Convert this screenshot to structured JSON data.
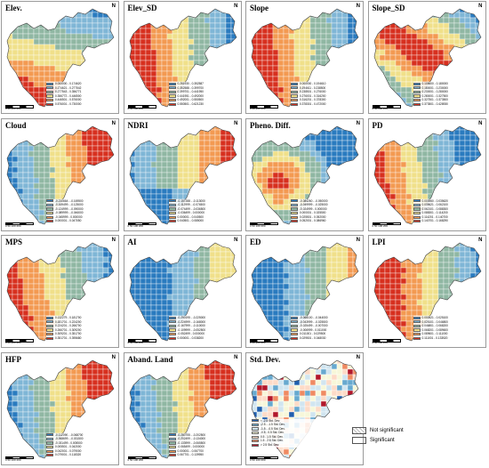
{
  "north_symbol": "N",
  "scale_label": "0  50  100    200",
  "panels": [
    {
      "title": "Elev.",
      "ramp": "red_high_south",
      "legend": [
        "0.000000 - 0.174620",
        "0.174621 - 0.277542",
        "0.277543 - 0.356771",
        "0.356772 - 0.446500",
        "0.446501 - 0.576000",
        "0.576001 - 0.730000"
      ]
    },
    {
      "title": "Elev_SD",
      "ramp": "red_high_west",
      "legend": [
        "0.281930 - 0.352587",
        "0.352588 - 0.399700",
        "0.399701 - 0.441950",
        "0.441951 - 0.492000",
        "0.492001 - 0.550500",
        "0.550501 - 0.621230"
      ]
    },
    {
      "title": "Slope",
      "ramp": "red_high_west",
      "legend": [
        "0.000000 - 0.194610",
        "0.194611 - 0.238500",
        "0.238501 - 0.276000",
        "0.276001 - 0.316200",
        "0.316201 - 0.378300",
        "0.378301 - 0.472000"
      ]
    },
    {
      "title": "Slope_SD",
      "ramp": "red_high_north_band",
      "legend": [
        "0.105600 - 0.180000",
        "0.180001 - 0.230000",
        "0.230001 - 0.280000",
        "0.280001 - 0.327500",
        "0.327501 - 0.373500",
        "0.373501 - 0.428930"
      ]
    },
    {
      "title": "Cloud",
      "ramp": "red_high_east",
      "legend": [
        "-0.210664 - -0.169500",
        "-0.169499 - -0.125000",
        "-0.124999 - -0.090000",
        "-0.089999 - -0.046000",
        "-0.045999 - 0.000000",
        "0.000001 - 0.047050"
      ]
    },
    {
      "title": "NDRI",
      "ramp": "red_high_east_band",
      "legend": [
        "-0.157288 - -0.113000",
        "-0.112999 - -0.074500",
        "-0.074499 - -0.036500",
        "-0.036499 - 0.000000",
        "0.000001 - 0.040500",
        "0.040501 - 0.085000"
      ]
    },
    {
      "title": "Pheno. Diff.",
      "ramp": "red_high_west_core",
      "legend": [
        "-0.084260 - -0.050000",
        "-0.049999 - -0.025000",
        "-0.024999 - 0.000000",
        "0.000001 - 0.025500",
        "0.025501 - 0.052000",
        "0.052001 - 0.086960"
      ]
    },
    {
      "title": "PD",
      "ramp": "red_high_south_west",
      "legend": [
        "0.003960 - 0.035620",
        "0.035621 - 0.062100",
        "0.062101 - 0.088300",
        "0.088301 - 0.114200",
        "0.114201 - 0.140700",
        "0.140701 - 0.168290"
      ]
    },
    {
      "title": "MPS",
      "ramp": "red_high_west_diag",
      "legend": [
        "0.132279 - 0.181700",
        "0.181701 - 0.224200",
        "0.224201 - 0.266700",
        "0.266701 - 0.309200",
        "0.309201 - 0.351700",
        "0.351701 - 0.395680"
      ]
    },
    {
      "title": "AI",
      "ramp": "blue_dominant",
      "legend": [
        "-0.290195 - -0.225000",
        "-0.224999 - -0.168000",
        "-0.167999 - -0.110000",
        "-0.109999 - -0.052500",
        "-0.052499 - 0.000000",
        "0.000001 - 0.038200"
      ]
    },
    {
      "title": "ED",
      "ramp": "red_high_east_small",
      "legend": [
        "-0.068100 - -0.044000",
        "-0.043999 - -0.025500",
        "-0.025499 - -0.007000",
        "-0.006999 - 0.011000",
        "0.011001 - 0.029500",
        "0.029501 - 0.048030"
      ]
    },
    {
      "title": "LPI",
      "ramp": "red_high_west_wide",
      "legend": [
        "0.000521 - 0.025100",
        "0.025101 - 0.046800",
        "0.046801 - 0.068200",
        "0.068201 - 0.089600",
        "0.089601 - 0.111000",
        "0.111001 - 0.133520"
      ]
    },
    {
      "title": "HFP",
      "ramp": "red_high_east",
      "legend": [
        "-0.112090 - -0.068700",
        "-0.068699 - -0.031500",
        "-0.031499 - 0.005500",
        "0.005501 - 0.042000",
        "0.042001 - 0.079000",
        "0.079001 - 0.118320"
      ]
    },
    {
      "title": "Aband. Land",
      "ramp": "red_high_east",
      "legend": [
        "-0.280755 - -0.202500",
        "-0.202499 - -0.134000",
        "-0.133999 - -0.065500",
        "-0.065499 - 0.000000",
        "0.000001 - 0.067700",
        "0.067701 - 0.139950"
      ]
    },
    {
      "title": "Std. Dev.",
      "ramp": "stddev",
      "legend": [
        "< -2.5 Std. Dev.",
        "-2.5 - -1.5 Std. Dev.",
        "-1.5 - -0.5 Std. Dev.",
        "-0.5 - 0.5 Std. Dev.",
        "0.5 - 1.5 Std. Dev.",
        "1.5 - 2.5 Std. Dev.",
        "> 2.5 Std. Dev."
      ]
    }
  ],
  "significance_legend": {
    "not_significant": "Not significant",
    "significant": "Significant"
  },
  "colors": {
    "six_class": [
      "#2a7bbf",
      "#7fb6d6",
      "#90b7a3",
      "#f0e08a",
      "#f39a52",
      "#d7301f"
    ],
    "stddev": [
      "#1f5fae",
      "#67a9cf",
      "#d1e5f0",
      "#f7f7d9",
      "#fddbc7",
      "#ef8a62",
      "#b2182b"
    ]
  }
}
